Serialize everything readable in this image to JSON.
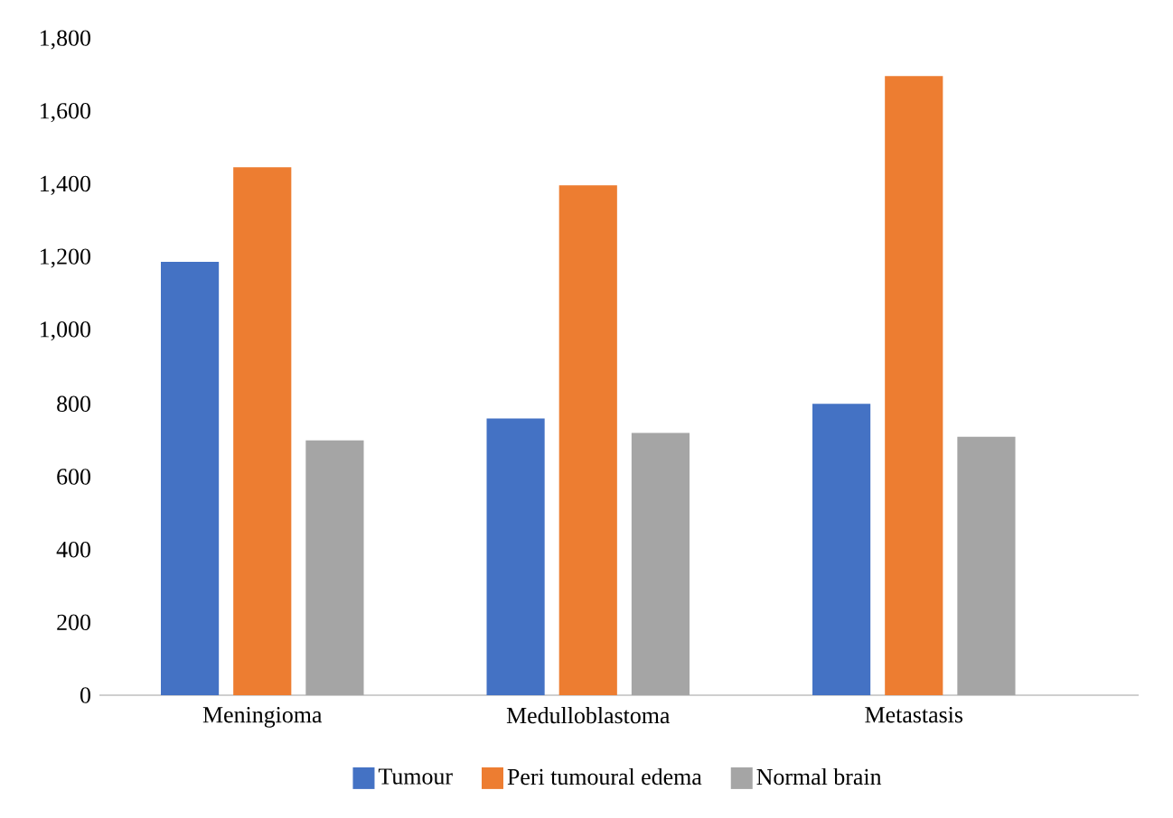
{
  "chart_data": {
    "type": "bar",
    "categories": [
      "Meningioma",
      "Medulloblastoma",
      "Metastasis"
    ],
    "series": [
      {
        "name": "Tumour",
        "color": "#4472c4",
        "values": [
          1190,
          760,
          800
        ]
      },
      {
        "name": "Peri tumoural edema",
        "color": "#ed7d31",
        "values": [
          1450,
          1400,
          1700
        ]
      },
      {
        "name": "Normal brain",
        "color": "#a5a5a5",
        "values": [
          700,
          720,
          710
        ]
      }
    ],
    "ylim": [
      0,
      1800
    ],
    "yticks": [
      {
        "value": 0,
        "label": "0"
      },
      {
        "value": 200,
        "label": "200"
      },
      {
        "value": 400,
        "label": "400"
      },
      {
        "value": 600,
        "label": "600"
      },
      {
        "value": 800,
        "label": "800"
      },
      {
        "value": 1000,
        "label": "1,000"
      },
      {
        "value": 1200,
        "label": "1,200"
      },
      {
        "value": 1400,
        "label": "1,400"
      },
      {
        "value": 1600,
        "label": "1,600"
      },
      {
        "value": 1800,
        "label": "1,800"
      }
    ],
    "grid": false,
    "legend": "bottom"
  }
}
